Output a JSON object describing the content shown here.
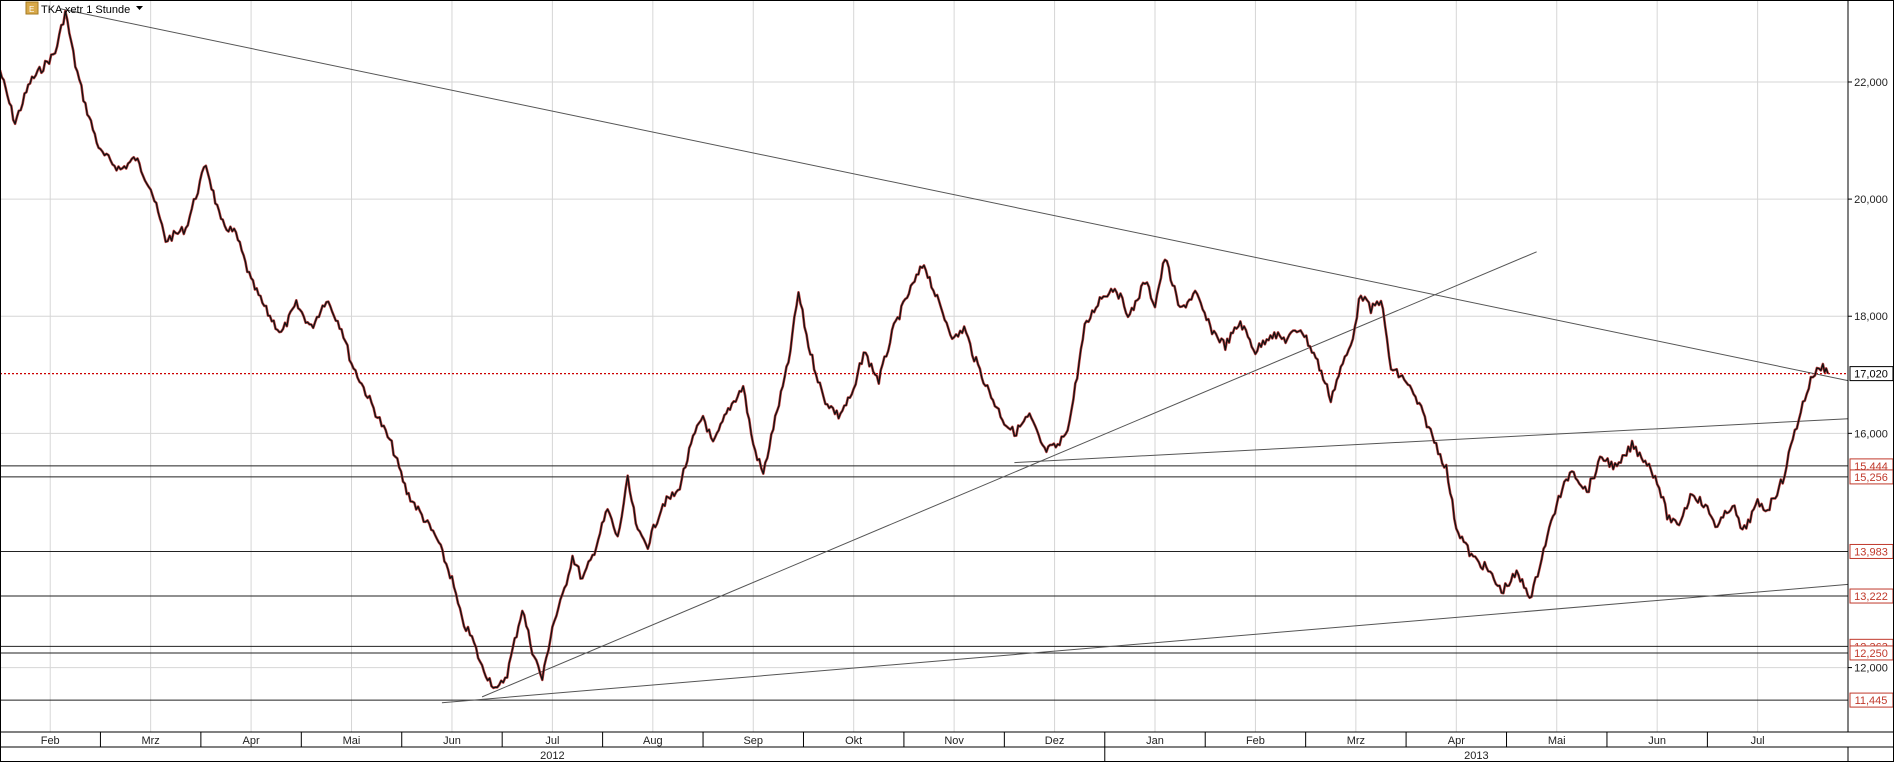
{
  "toolbar": {
    "title": "TKA xetr 1 Stunde"
  },
  "chart_data": {
    "type": "line",
    "title": "TKA xetr 1 Stunde",
    "xlabel": "",
    "ylabel": "",
    "ylim": [
      10900,
      23400
    ],
    "grid": true,
    "x_axis": {
      "months": [
        {
          "label": "Feb",
          "start": 0.0
        },
        {
          "label": "Mrz",
          "start": 1.0
        },
        {
          "label": "Apr",
          "start": 2.0
        },
        {
          "label": "Mai",
          "start": 3.0
        },
        {
          "label": "Jun",
          "start": 4.0
        },
        {
          "label": "Jul",
          "start": 5.0
        },
        {
          "label": "Aug",
          "start": 6.0
        },
        {
          "label": "Sep",
          "start": 7.0
        },
        {
          "label": "Okt",
          "start": 8.0
        },
        {
          "label": "Nov",
          "start": 9.0
        },
        {
          "label": "Dez",
          "start": 10.0
        },
        {
          "label": "Jan",
          "start": 11.0
        },
        {
          "label": "Feb",
          "start": 12.0
        },
        {
          "label": "Mrz",
          "start": 13.0
        },
        {
          "label": "Apr",
          "start": 14.0
        },
        {
          "label": "Mai",
          "start": 15.0
        },
        {
          "label": "Jun",
          "start": 16.0
        },
        {
          "label": "Jul",
          "start": 17.0
        }
      ],
      "years": [
        {
          "label": "2012",
          "start": -0.5,
          "end": 10.5
        },
        {
          "label": "2013",
          "start": 10.5,
          "end": 17.9
        }
      ],
      "range": [
        -0.5,
        17.9
      ]
    },
    "y_ticks": [
      {
        "label": "22,000",
        "value": 22000
      },
      {
        "label": "20,000",
        "value": 20000
      },
      {
        "label": "18,000",
        "value": 18000
      },
      {
        "label": "16,000",
        "value": 16000
      },
      {
        "label": "12,000",
        "value": 12000
      }
    ],
    "current_price": {
      "label": "17,020",
      "value": 17020,
      "color": "#cc0000"
    },
    "horizontal_levels": [
      {
        "label": "15,444",
        "value": 15444
      },
      {
        "label": "15,256",
        "value": 15256
      },
      {
        "label": "13,983",
        "value": 13983
      },
      {
        "label": "13,222",
        "value": 13222
      },
      {
        "label": "12,363",
        "value": 12363
      },
      {
        "label": "12,250",
        "value": 12250
      },
      {
        "label": "11,445",
        "value": 11445
      }
    ],
    "trendlines": [
      {
        "x1": 0.1,
        "y1": 23250,
        "x2": 17.9,
        "y2": 16900
      },
      {
        "x1": 3.9,
        "y1": 11400,
        "x2": 17.9,
        "y2": 13420
      },
      {
        "x1": 4.3,
        "y1": 11500,
        "x2": 14.8,
        "y2": 19100
      },
      {
        "x1": 9.6,
        "y1": 15500,
        "x2": 17.9,
        "y2": 16250
      }
    ],
    "price_path": [
      [
        -0.5,
        22200
      ],
      [
        -0.35,
        21300
      ],
      [
        -0.2,
        22000
      ],
      [
        -0.05,
        22300
      ],
      [
        0.05,
        22500
      ],
      [
        0.15,
        23200
      ],
      [
        0.25,
        22300
      ],
      [
        0.35,
        21600
      ],
      [
        0.5,
        20800
      ],
      [
        0.7,
        20500
      ],
      [
        0.85,
        20700
      ],
      [
        1.0,
        20200
      ],
      [
        1.15,
        19300
      ],
      [
        1.35,
        19500
      ],
      [
        1.55,
        20600
      ],
      [
        1.7,
        19600
      ],
      [
        1.85,
        19400
      ],
      [
        2.0,
        18600
      ],
      [
        2.15,
        18100
      ],
      [
        2.3,
        17700
      ],
      [
        2.45,
        18200
      ],
      [
        2.6,
        17800
      ],
      [
        2.75,
        18300
      ],
      [
        2.9,
        17800
      ],
      [
        3.0,
        17200
      ],
      [
        3.2,
        16500
      ],
      [
        3.4,
        15800
      ],
      [
        3.55,
        15000
      ],
      [
        3.7,
        14600
      ],
      [
        3.85,
        14200
      ],
      [
        4.0,
        13500
      ],
      [
        4.1,
        12800
      ],
      [
        4.2,
        12500
      ],
      [
        4.3,
        12000
      ],
      [
        4.45,
        11600
      ],
      [
        4.55,
        11900
      ],
      [
        4.7,
        13000
      ],
      [
        4.8,
        12300
      ],
      [
        4.9,
        11800
      ],
      [
        5.0,
        12700
      ],
      [
        5.1,
        13200
      ],
      [
        5.2,
        13900
      ],
      [
        5.3,
        13500
      ],
      [
        5.4,
        13900
      ],
      [
        5.55,
        14700
      ],
      [
        5.65,
        14200
      ],
      [
        5.75,
        15200
      ],
      [
        5.85,
        14300
      ],
      [
        5.95,
        14100
      ],
      [
        6.1,
        14800
      ],
      [
        6.25,
        15000
      ],
      [
        6.4,
        15900
      ],
      [
        6.5,
        16300
      ],
      [
        6.6,
        15800
      ],
      [
        6.75,
        16400
      ],
      [
        6.9,
        16800
      ],
      [
        7.0,
        15800
      ],
      [
        7.1,
        15300
      ],
      [
        7.2,
        16100
      ],
      [
        7.35,
        17200
      ],
      [
        7.45,
        18400
      ],
      [
        7.55,
        17500
      ],
      [
        7.7,
        16600
      ],
      [
        7.85,
        16300
      ],
      [
        8.0,
        16700
      ],
      [
        8.1,
        17400
      ],
      [
        8.25,
        16900
      ],
      [
        8.4,
        17800
      ],
      [
        8.55,
        18400
      ],
      [
        8.7,
        18900
      ],
      [
        8.85,
        18200
      ],
      [
        9.0,
        17600
      ],
      [
        9.1,
        17800
      ],
      [
        9.2,
        17300
      ],
      [
        9.35,
        16700
      ],
      [
        9.5,
        16200
      ],
      [
        9.6,
        16000
      ],
      [
        9.75,
        16300
      ],
      [
        9.9,
        15700
      ],
      [
        10.05,
        15800
      ],
      [
        10.15,
        16200
      ],
      [
        10.3,
        17800
      ],
      [
        10.45,
        18300
      ],
      [
        10.6,
        18500
      ],
      [
        10.75,
        18000
      ],
      [
        10.9,
        18600
      ],
      [
        11.0,
        18200
      ],
      [
        11.1,
        19000
      ],
      [
        11.25,
        18100
      ],
      [
        11.4,
        18400
      ],
      [
        11.55,
        17800
      ],
      [
        11.7,
        17500
      ],
      [
        11.85,
        17900
      ],
      [
        12.0,
        17400
      ],
      [
        12.15,
        17700
      ],
      [
        12.3,
        17600
      ],
      [
        12.45,
        17800
      ],
      [
        12.6,
        17300
      ],
      [
        12.75,
        16600
      ],
      [
        12.85,
        17100
      ],
      [
        12.95,
        17500
      ],
      [
        13.05,
        18400
      ],
      [
        13.15,
        18100
      ],
      [
        13.25,
        18300
      ],
      [
        13.35,
        17100
      ],
      [
        13.5,
        16900
      ],
      [
        13.65,
        16400
      ],
      [
        13.8,
        15800
      ],
      [
        13.9,
        15400
      ],
      [
        14.0,
        14400
      ],
      [
        14.15,
        13900
      ],
      [
        14.3,
        13700
      ],
      [
        14.45,
        13300
      ],
      [
        14.6,
        13600
      ],
      [
        14.75,
        13200
      ],
      [
        14.85,
        13900
      ],
      [
        15.0,
        14800
      ],
      [
        15.15,
        15400
      ],
      [
        15.3,
        15000
      ],
      [
        15.45,
        15600
      ],
      [
        15.6,
        15400
      ],
      [
        15.75,
        15800
      ],
      [
        15.9,
        15500
      ],
      [
        16.0,
        15200
      ],
      [
        16.1,
        14600
      ],
      [
        16.2,
        14400
      ],
      [
        16.35,
        15000
      ],
      [
        16.5,
        14700
      ],
      [
        16.6,
        14400
      ],
      [
        16.75,
        14800
      ],
      [
        16.85,
        14300
      ],
      [
        17.0,
        14800
      ],
      [
        17.1,
        14700
      ],
      [
        17.25,
        15200
      ],
      [
        17.35,
        15900
      ],
      [
        17.45,
        16500
      ],
      [
        17.55,
        17000
      ],
      [
        17.65,
        17150
      ],
      [
        17.7,
        17020
      ]
    ]
  }
}
